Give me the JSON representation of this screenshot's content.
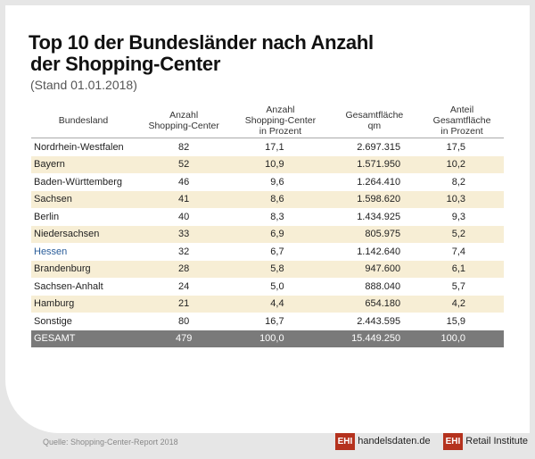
{
  "title_line1": "Top 10 der Bundesländer nach Anzahl",
  "title_line2": "der Shopping-Center",
  "subtitle": "(Stand 01.01.2018)",
  "headers": [
    "Bundesland",
    "Anzahl\nShopping-Center",
    "Anzahl\nShopping-Center\nin Prozent",
    "Gesamtfläche\nqm",
    "Anteil\nGesamtfläche\nin Prozent"
  ],
  "rows": [
    [
      "Nordrhein-Westfalen",
      "82",
      "17,1",
      "2.697.315",
      "17,5"
    ],
    [
      "Bayern",
      "52",
      "10,9",
      "1.571.950",
      "10,2"
    ],
    [
      "Baden-Württemberg",
      "46",
      "9,6",
      "1.264.410",
      "8,2"
    ],
    [
      "Sachsen",
      "41",
      "8,6",
      "1.598.620",
      "10,3"
    ],
    [
      "Berlin",
      "40",
      "8,3",
      "1.434.925",
      "9,3"
    ],
    [
      "Niedersachsen",
      "33",
      "6,9",
      "805.975",
      "5,2"
    ],
    [
      "Hessen",
      "32",
      "6,7",
      "1.142.640",
      "7,4"
    ],
    [
      "Brandenburg",
      "28",
      "5,8",
      "947.600",
      "6,1"
    ],
    [
      "Sachsen-Anhalt",
      "24",
      "5,0",
      "888.040",
      "5,7"
    ],
    [
      "Hamburg",
      "21",
      "4,4",
      "654.180",
      "4,2"
    ],
    [
      "Sonstige",
      "80",
      "16,7",
      "2.443.595",
      "15,9"
    ]
  ],
  "highlighted_row": "Hessen",
  "highlight_color": "#2a5d9a",
  "total": [
    "GESAMT",
    "479",
    "100,0",
    "15.449.250",
    "100,0"
  ],
  "source": "Quelle: Shopping-Center-Report 2018",
  "logo1": {
    "badge": "EHI",
    "text": "handelsdaten.de"
  },
  "logo2": {
    "badge": "EHI",
    "text": "Retail Institute"
  }
}
